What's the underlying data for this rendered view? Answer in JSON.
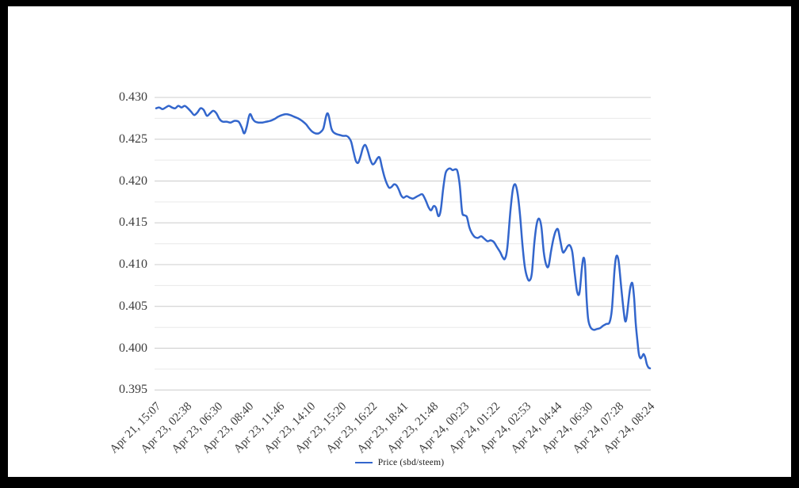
{
  "page": {
    "background": "#ffffff",
    "frame_color": "#000000"
  },
  "legend": {
    "label": "Price (sbd/steem)"
  },
  "chart_data": {
    "type": "line",
    "title": "",
    "xlabel": "",
    "ylabel": "",
    "series_name": "Price (sbd/steem)",
    "line_color": "#3366cc",
    "major_grid_color": "#cccccc",
    "minor_grid_color": "#e9e9e9",
    "axis_text_color": "#3d3d3d",
    "grid": "horizontal-only",
    "legend_position": "bottom-center",
    "ylim": [
      0.395,
      0.43
    ],
    "y_ticks": [
      {
        "label": "0.430",
        "value": 0.43
      },
      {
        "label": "0.425",
        "value": 0.425
      },
      {
        "label": "0.420",
        "value": 0.42
      },
      {
        "label": "0.415",
        "value": 0.415
      },
      {
        "label": "0.410",
        "value": 0.41
      },
      {
        "label": "0.405",
        "value": 0.405
      },
      {
        "label": "0.400",
        "value": 0.4
      },
      {
        "label": "0.395",
        "value": 0.395
      }
    ],
    "minor_ticks_every": 0.0025,
    "x_tick_labels": [
      "Apr 21, 15:07",
      "Apr 23, 02:38",
      "Apr 23, 06:30",
      "Apr 23, 08:40",
      "Apr 23, 11:46",
      "Apr 23, 14:10",
      "Apr 23, 15:20",
      "Apr 23, 16:22",
      "Apr 23, 18:41",
      "Apr 23, 21:48",
      "Apr 24, 00:23",
      "Apr 24, 01:22",
      "Apr 24, 02:53",
      "Apr 24, 04:44",
      "Apr 24, 06:30",
      "Apr 24, 07:28",
      "Apr 24, 08:24"
    ],
    "points": [
      [
        197,
        0.4287
      ],
      [
        201,
        0.4288
      ],
      [
        205,
        0.4286
      ],
      [
        209,
        0.4288
      ],
      [
        213,
        0.429
      ],
      [
        217,
        0.4288
      ],
      [
        221,
        0.4287
      ],
      [
        225,
        0.429
      ],
      [
        229,
        0.4288
      ],
      [
        233,
        0.429
      ],
      [
        237,
        0.4287
      ],
      [
        241,
        0.4283
      ],
      [
        245,
        0.4279
      ],
      [
        249,
        0.4282
      ],
      [
        253,
        0.4287
      ],
      [
        257,
        0.4285
      ],
      [
        261,
        0.4278
      ],
      [
        265,
        0.4281
      ],
      [
        269,
        0.4284
      ],
      [
        273,
        0.4281
      ],
      [
        277,
        0.4274
      ],
      [
        281,
        0.4271
      ],
      [
        286,
        0.4271
      ],
      [
        291,
        0.427
      ],
      [
        296,
        0.4272
      ],
      [
        301,
        0.4271
      ],
      [
        305,
        0.4264
      ],
      [
        308,
        0.4257
      ],
      [
        311,
        0.4264
      ],
      [
        314,
        0.4277
      ],
      [
        316,
        0.428
      ],
      [
        319,
        0.4274
      ],
      [
        322,
        0.4271
      ],
      [
        326,
        0.427
      ],
      [
        331,
        0.427
      ],
      [
        336,
        0.4271
      ],
      [
        341,
        0.4272
      ],
      [
        346,
        0.4274
      ],
      [
        351,
        0.4277
      ],
      [
        356,
        0.4279
      ],
      [
        361,
        0.428
      ],
      [
        366,
        0.4279
      ],
      [
        371,
        0.4277
      ],
      [
        376,
        0.4275
      ],
      [
        381,
        0.4272
      ],
      [
        386,
        0.4268
      ],
      [
        390,
        0.4263
      ],
      [
        394,
        0.4259
      ],
      [
        398,
        0.4257
      ],
      [
        402,
        0.4257
      ],
      [
        405,
        0.4259
      ],
      [
        408,
        0.4263
      ],
      [
        411,
        0.4276
      ],
      [
        413,
        0.4281
      ],
      [
        415,
        0.4277
      ],
      [
        418,
        0.4263
      ],
      [
        421,
        0.4258
      ],
      [
        425,
        0.4256
      ],
      [
        429,
        0.4255
      ],
      [
        433,
        0.4254
      ],
      [
        437,
        0.4254
      ],
      [
        440,
        0.4252
      ],
      [
        443,
        0.4247
      ],
      [
        446,
        0.4235
      ],
      [
        449,
        0.4224
      ],
      [
        452,
        0.4222
      ],
      [
        455,
        0.423
      ],
      [
        458,
        0.424
      ],
      [
        461,
        0.4243
      ],
      [
        464,
        0.4236
      ],
      [
        467,
        0.4226
      ],
      [
        470,
        0.422
      ],
      [
        473,
        0.4222
      ],
      [
        476,
        0.4227
      ],
      [
        479,
        0.4228
      ],
      [
        482,
        0.4216
      ],
      [
        485,
        0.4205
      ],
      [
        488,
        0.4197
      ],
      [
        491,
        0.4192
      ],
      [
        494,
        0.4193
      ],
      [
        497,
        0.4196
      ],
      [
        500,
        0.4195
      ],
      [
        503,
        0.419
      ],
      [
        506,
        0.4183
      ],
      [
        509,
        0.418
      ],
      [
        513,
        0.4182
      ],
      [
        517,
        0.418
      ],
      [
        521,
        0.4179
      ],
      [
        525,
        0.4181
      ],
      [
        529,
        0.4183
      ],
      [
        533,
        0.4184
      ],
      [
        537,
        0.4177
      ],
      [
        541,
        0.4168
      ],
      [
        544,
        0.4165
      ],
      [
        547,
        0.417
      ],
      [
        550,
        0.4168
      ],
      [
        553,
        0.4158
      ],
      [
        556,
        0.4165
      ],
      [
        559,
        0.419
      ],
      [
        562,
        0.4209
      ],
      [
        565,
        0.4214
      ],
      [
        568,
        0.4215
      ],
      [
        571,
        0.4213
      ],
      [
        574,
        0.4214
      ],
      [
        577,
        0.4212
      ],
      [
        580,
        0.4195
      ],
      [
        583,
        0.4163
      ],
      [
        586,
        0.4159
      ],
      [
        589,
        0.4157
      ],
      [
        592,
        0.4145
      ],
      [
        595,
        0.4138
      ],
      [
        599,
        0.4133
      ],
      [
        603,
        0.4132
      ],
      [
        607,
        0.4134
      ],
      [
        611,
        0.4131
      ],
      [
        615,
        0.4128
      ],
      [
        619,
        0.4129
      ],
      [
        623,
        0.4127
      ],
      [
        627,
        0.4121
      ],
      [
        631,
        0.4115
      ],
      [
        634,
        0.4109
      ],
      [
        637,
        0.4107
      ],
      [
        640,
        0.412
      ],
      [
        644,
        0.4165
      ],
      [
        647,
        0.419
      ],
      [
        650,
        0.4196
      ],
      [
        653,
        0.4185
      ],
      [
        656,
        0.416
      ],
      [
        659,
        0.4125
      ],
      [
        662,
        0.4098
      ],
      [
        665,
        0.4085
      ],
      [
        668,
        0.4081
      ],
      [
        671,
        0.409
      ],
      [
        674,
        0.4125
      ],
      [
        677,
        0.4148
      ],
      [
        680,
        0.4155
      ],
      [
        683,
        0.4145
      ],
      [
        686,
        0.4115
      ],
      [
        689,
        0.41
      ],
      [
        692,
        0.4098
      ],
      [
        695,
        0.4115
      ],
      [
        698,
        0.413
      ],
      [
        701,
        0.414
      ],
      [
        704,
        0.4142
      ],
      [
        707,
        0.4128
      ],
      [
        710,
        0.4115
      ],
      [
        713,
        0.4117
      ],
      [
        716,
        0.4122
      ],
      [
        719,
        0.4123
      ],
      [
        722,
        0.4115
      ],
      [
        725,
        0.409
      ],
      [
        728,
        0.4068
      ],
      [
        731,
        0.4066
      ],
      [
        734,
        0.4095
      ],
      [
        736,
        0.4108
      ],
      [
        738,
        0.41
      ],
      [
        740,
        0.406
      ],
      [
        742,
        0.4035
      ],
      [
        745,
        0.4025
      ],
      [
        749,
        0.4022
      ],
      [
        753,
        0.4023
      ],
      [
        757,
        0.4024
      ],
      [
        761,
        0.4027
      ],
      [
        765,
        0.4029
      ],
      [
        769,
        0.4031
      ],
      [
        772,
        0.4047
      ],
      [
        775,
        0.409
      ],
      [
        777,
        0.4108
      ],
      [
        779,
        0.411
      ],
      [
        781,
        0.41
      ],
      [
        784,
        0.407
      ],
      [
        787,
        0.4043
      ],
      [
        789,
        0.4032
      ],
      [
        791,
        0.404
      ],
      [
        794,
        0.4065
      ],
      [
        796,
        0.4076
      ],
      [
        798,
        0.4077
      ],
      [
        800,
        0.406
      ],
      [
        802,
        0.403
      ],
      [
        804,
        0.401
      ],
      [
        806,
        0.3993
      ],
      [
        808,
        0.3988
      ],
      [
        810,
        0.399
      ],
      [
        812,
        0.3993
      ],
      [
        814,
        0.3989
      ],
      [
        816,
        0.3981
      ],
      [
        818,
        0.3977
      ],
      [
        820,
        0.3976
      ]
    ]
  }
}
